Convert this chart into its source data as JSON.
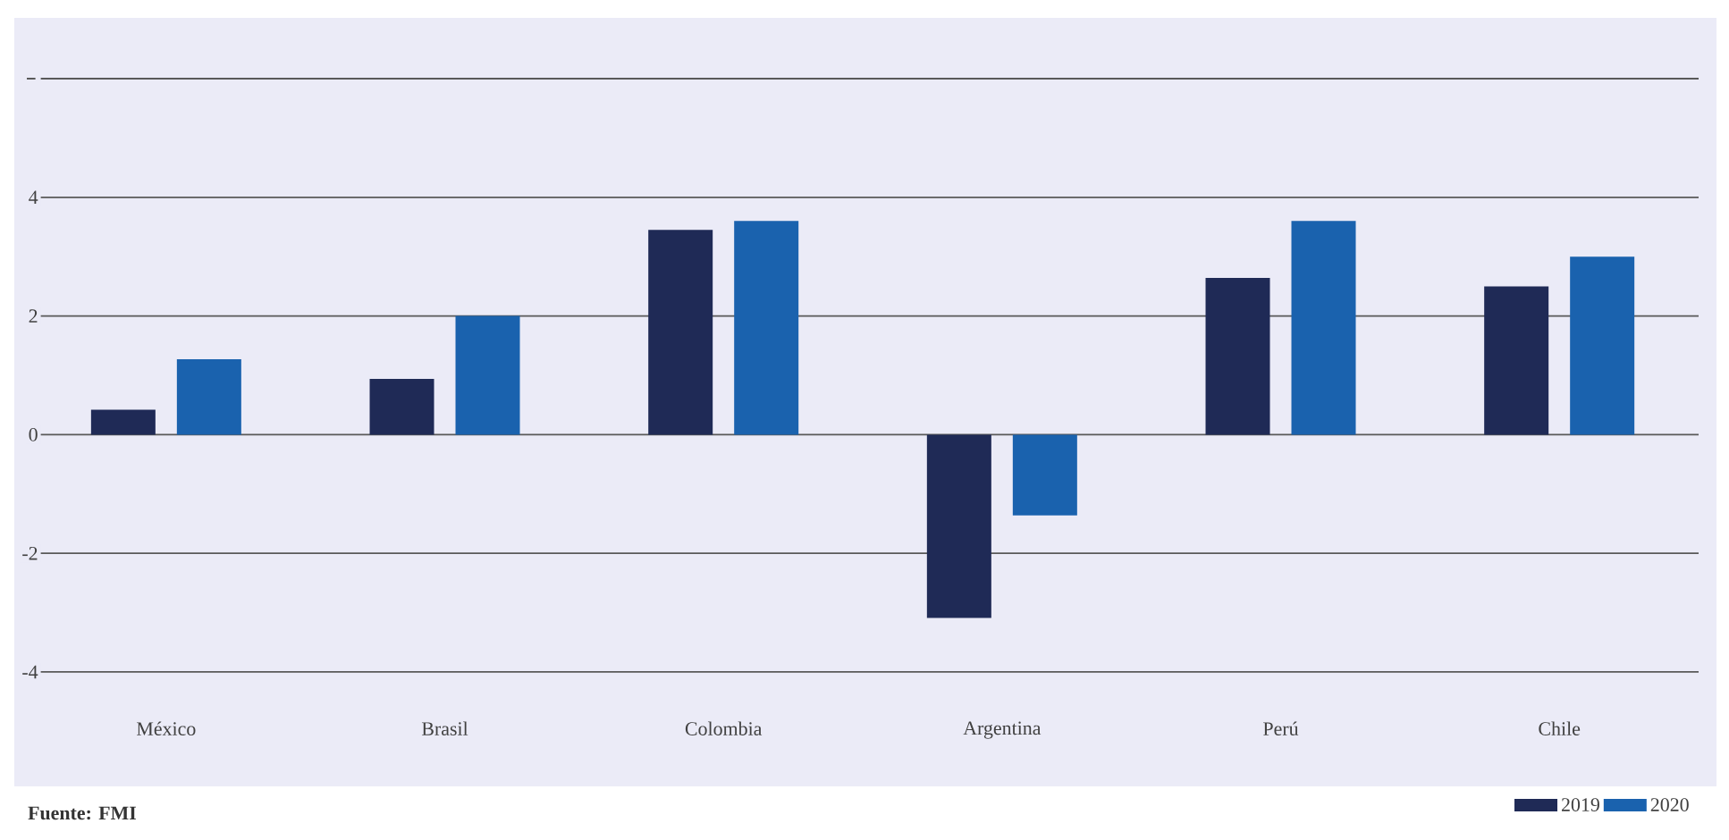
{
  "chart_data": {
    "type": "bar",
    "categories": [
      "México",
      "Brasil",
      "Colombia",
      "Argentina",
      "Perú",
      "Chile"
    ],
    "series": [
      {
        "name": "2019",
        "color": "#1f2a56",
        "values": [
          0.42,
          0.94,
          3.45,
          -3.09,
          2.64,
          2.5
        ]
      },
      {
        "name": "2020",
        "color": "#1a62ae",
        "values": [
          1.27,
          2.0,
          3.6,
          -1.36,
          3.6,
          3.0
        ]
      }
    ],
    "ylim": [
      -4,
      6
    ],
    "yticks": [
      -4,
      -2,
      0,
      2,
      4,
      {
        "value": 6,
        "label": null
      }
    ],
    "grid": "y",
    "legend": "bottom right",
    "annotations": [
      "Fuente: FMI"
    ]
  }
}
